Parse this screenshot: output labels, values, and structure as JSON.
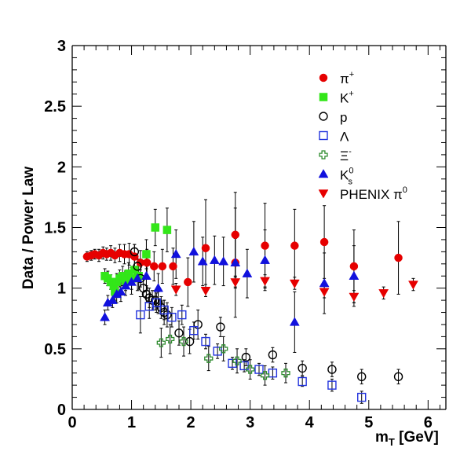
{
  "chart_data": {
    "type": "scatter",
    "xlabel": "m",
    "xlabel_sub": "T",
    "xlabel_unit": " [GeV]",
    "ylabel": "Data / Power Law",
    "xlim": [
      0,
      6.3
    ],
    "ylim": [
      0,
      3
    ],
    "x_ticks": [
      "0",
      "1",
      "2",
      "3",
      "4",
      "5",
      "6"
    ],
    "y_ticks": [
      "0",
      "0.5",
      "1",
      "1.5",
      "2",
      "2.5",
      "3"
    ],
    "x_tick_values": [
      0,
      1,
      2,
      3,
      4,
      5,
      6
    ],
    "y_tick_values": [
      0,
      0.5,
      1,
      1.5,
      2,
      2.5,
      3
    ],
    "grid": false,
    "legend_position": "top-right",
    "series": [
      {
        "name": "π⁺",
        "legend_base": "π",
        "legend_sup": "+",
        "legend_sub": "",
        "marker": "circle",
        "color": "#e60000",
        "filled": true,
        "points": [
          {
            "x": 0.25,
            "y": 1.26,
            "e": 0.04
          },
          {
            "x": 0.32,
            "y": 1.27,
            "e": 0.04
          },
          {
            "x": 0.38,
            "y": 1.28,
            "e": 0.04
          },
          {
            "x": 0.45,
            "y": 1.27,
            "e": 0.05
          },
          {
            "x": 0.52,
            "y": 1.29,
            "e": 0.05
          },
          {
            "x": 0.58,
            "y": 1.28,
            "e": 0.05
          },
          {
            "x": 0.65,
            "y": 1.29,
            "e": 0.06
          },
          {
            "x": 0.72,
            "y": 1.27,
            "e": 0.06
          },
          {
            "x": 0.8,
            "y": 1.29,
            "e": 0.07
          },
          {
            "x": 0.88,
            "y": 1.28,
            "e": 0.08
          },
          {
            "x": 0.96,
            "y": 1.28,
            "e": 0.09
          },
          {
            "x": 1.05,
            "y": 1.26,
            "e": 0.1
          },
          {
            "x": 1.15,
            "y": 1.21,
            "e": 0.1
          },
          {
            "x": 1.26,
            "y": 1.21,
            "e": 0.11
          },
          {
            "x": 1.38,
            "y": 1.18,
            "e": 0.12
          },
          {
            "x": 1.52,
            "y": 1.18,
            "e": 0.14
          },
          {
            "x": 1.7,
            "y": 1.18,
            "e": 0.15
          },
          {
            "x": 1.95,
            "y": 1.05,
            "e": 0.2
          },
          {
            "x": 2.25,
            "y": 1.33,
            "e": 0.4
          },
          {
            "x": 2.75,
            "y": 1.44,
            "e": 0.35
          },
          {
            "x": 2.75,
            "y": 1.21,
            "e": 0.45
          },
          {
            "x": 3.25,
            "y": 1.35,
            "e": 0.35
          },
          {
            "x": 3.75,
            "y": 1.35,
            "e": 0.3
          },
          {
            "x": 4.25,
            "y": 1.38,
            "e": 0.3
          },
          {
            "x": 4.75,
            "y": 1.18,
            "e": 0.3
          },
          {
            "x": 5.5,
            "y": 1.25,
            "e": 0.3
          }
        ]
      },
      {
        "name": "K⁺",
        "legend_base": "K",
        "legend_sup": "+",
        "legend_sub": "",
        "marker": "square",
        "color": "#33e619",
        "filled": true,
        "points": [
          {
            "x": 0.55,
            "y": 1.1,
            "e": 0.06
          },
          {
            "x": 0.6,
            "y": 1.08,
            "e": 0.06
          },
          {
            "x": 0.65,
            "y": 1.05,
            "e": 0.06
          },
          {
            "x": 0.7,
            "y": 1.02,
            "e": 0.06
          },
          {
            "x": 0.72,
            "y": 0.97,
            "e": 0.07
          },
          {
            "x": 0.75,
            "y": 1.05,
            "e": 0.07
          },
          {
            "x": 0.8,
            "y": 1.08,
            "e": 0.07
          },
          {
            "x": 0.85,
            "y": 1.1,
            "e": 0.08
          },
          {
            "x": 0.9,
            "y": 1.06,
            "e": 0.08
          },
          {
            "x": 0.95,
            "y": 1.12,
            "e": 0.09
          },
          {
            "x": 1.0,
            "y": 1.08,
            "e": 0.09
          },
          {
            "x": 1.05,
            "y": 1.15,
            "e": 0.1
          },
          {
            "x": 1.12,
            "y": 1.1,
            "e": 0.11
          },
          {
            "x": 1.25,
            "y": 1.28,
            "e": 0.12
          },
          {
            "x": 1.4,
            "y": 1.5,
            "e": 0.15
          },
          {
            "x": 1.6,
            "y": 1.48,
            "e": 0.18
          }
        ]
      },
      {
        "name": "p",
        "legend_base": "p",
        "legend_sup": "",
        "legend_sub": "",
        "marker": "circle",
        "color": "#000000",
        "filled": false,
        "points": [
          {
            "x": 1.05,
            "y": 1.3,
            "e": 0.06
          },
          {
            "x": 1.1,
            "y": 1.18,
            "e": 0.06
          },
          {
            "x": 1.15,
            "y": 1.08,
            "e": 0.07
          },
          {
            "x": 1.2,
            "y": 1.0,
            "e": 0.07
          },
          {
            "x": 1.25,
            "y": 0.95,
            "e": 0.07
          },
          {
            "x": 1.3,
            "y": 0.92,
            "e": 0.08
          },
          {
            "x": 1.35,
            "y": 0.9,
            "e": 0.08
          },
          {
            "x": 1.4,
            "y": 0.9,
            "e": 0.08
          },
          {
            "x": 1.45,
            "y": 0.88,
            "e": 0.09
          },
          {
            "x": 1.5,
            "y": 0.84,
            "e": 0.09
          },
          {
            "x": 1.55,
            "y": 0.8,
            "e": 0.1
          },
          {
            "x": 1.6,
            "y": 0.78,
            "e": 0.1
          },
          {
            "x": 1.8,
            "y": 0.63,
            "e": 0.1
          },
          {
            "x": 1.98,
            "y": 0.56,
            "e": 0.1
          },
          {
            "x": 2.12,
            "y": 0.7,
            "e": 0.12
          },
          {
            "x": 2.5,
            "y": 0.68,
            "e": 0.08
          },
          {
            "x": 2.93,
            "y": 0.43,
            "e": 0.07
          },
          {
            "x": 3.38,
            "y": 0.45,
            "e": 0.06
          },
          {
            "x": 3.88,
            "y": 0.34,
            "e": 0.06
          },
          {
            "x": 4.38,
            "y": 0.33,
            "e": 0.06
          },
          {
            "x": 4.88,
            "y": 0.27,
            "e": 0.06
          },
          {
            "x": 5.5,
            "y": 0.27,
            "e": 0.06
          }
        ]
      },
      {
        "name": "Λ",
        "legend_base": "Λ",
        "legend_sup": "",
        "legend_sub": "",
        "marker": "square",
        "color": "#2233dd",
        "filled": false,
        "points": [
          {
            "x": 1.15,
            "y": 0.78,
            "e": 0.15
          },
          {
            "x": 1.3,
            "y": 0.85,
            "e": 0.1
          },
          {
            "x": 1.42,
            "y": 0.88,
            "e": 0.08
          },
          {
            "x": 1.55,
            "y": 0.82,
            "e": 0.08
          },
          {
            "x": 1.68,
            "y": 0.76,
            "e": 0.08
          },
          {
            "x": 1.85,
            "y": 0.78,
            "e": 0.08
          },
          {
            "x": 2.05,
            "y": 0.65,
            "e": 0.07
          },
          {
            "x": 2.25,
            "y": 0.56,
            "e": 0.06
          },
          {
            "x": 2.45,
            "y": 0.48,
            "e": 0.06
          },
          {
            "x": 2.7,
            "y": 0.38,
            "e": 0.05
          },
          {
            "x": 2.9,
            "y": 0.36,
            "e": 0.05
          },
          {
            "x": 3.15,
            "y": 0.33,
            "e": 0.05
          },
          {
            "x": 3.38,
            "y": 0.3,
            "e": 0.05
          },
          {
            "x": 3.88,
            "y": 0.23,
            "e": 0.04
          },
          {
            "x": 4.38,
            "y": 0.2,
            "e": 0.05
          },
          {
            "x": 4.88,
            "y": 0.1,
            "e": 0.05
          }
        ]
      },
      {
        "name": "Ξ⁻",
        "legend_base": "Ξ",
        "legend_sup": "-",
        "legend_sub": "",
        "marker": "cross",
        "color": "#2e8b2e",
        "filled": false,
        "points": [
          {
            "x": 1.5,
            "y": 0.55,
            "e": 0.12
          },
          {
            "x": 1.65,
            "y": 0.58,
            "e": 0.12
          },
          {
            "x": 1.88,
            "y": 0.56,
            "e": 0.12
          },
          {
            "x": 2.3,
            "y": 0.42,
            "e": 0.1
          },
          {
            "x": 2.55,
            "y": 0.5,
            "e": 0.1
          },
          {
            "x": 2.78,
            "y": 0.4,
            "e": 0.1
          },
          {
            "x": 3.0,
            "y": 0.33,
            "e": 0.08
          },
          {
            "x": 3.25,
            "y": 0.28,
            "e": 0.08
          },
          {
            "x": 3.6,
            "y": 0.3,
            "e": 0.08
          }
        ]
      },
      {
        "name": "K⁰s",
        "legend_base": "K",
        "legend_sup": "0",
        "legend_sub": "s",
        "marker": "triangle-up",
        "color": "#1111dd",
        "filled": true,
        "points": [
          {
            "x": 0.55,
            "y": 0.76,
            "e": 0.06
          },
          {
            "x": 0.6,
            "y": 0.88,
            "e": 0.06
          },
          {
            "x": 0.68,
            "y": 0.9,
            "e": 0.06
          },
          {
            "x": 0.75,
            "y": 0.95,
            "e": 0.07
          },
          {
            "x": 0.82,
            "y": 0.97,
            "e": 0.08
          },
          {
            "x": 0.9,
            "y": 1.02,
            "e": 0.08
          },
          {
            "x": 1.0,
            "y": 1.05,
            "e": 0.1
          },
          {
            "x": 1.1,
            "y": 1.08,
            "e": 0.1
          },
          {
            "x": 1.25,
            "y": 1.1,
            "e": 0.12
          },
          {
            "x": 1.45,
            "y": 1.0,
            "e": 0.12
          },
          {
            "x": 1.75,
            "y": 1.28,
            "e": 0.2
          },
          {
            "x": 2.05,
            "y": 1.3,
            "e": 0.25
          },
          {
            "x": 2.2,
            "y": 1.22,
            "e": 0.2
          },
          {
            "x": 2.4,
            "y": 1.23,
            "e": 0.2
          },
          {
            "x": 2.55,
            "y": 1.22,
            "e": 0.2
          },
          {
            "x": 2.75,
            "y": 1.21,
            "e": 0.2
          },
          {
            "x": 2.95,
            "y": 1.12,
            "e": 0.2
          },
          {
            "x": 3.25,
            "y": 1.23,
            "e": 0.25
          },
          {
            "x": 3.75,
            "y": 0.72,
            "e": 0.25
          },
          {
            "x": 4.25,
            "y": 1.04,
            "e": 0.25
          },
          {
            "x": 4.75,
            "y": 1.1,
            "e": 0.25
          }
        ]
      },
      {
        "name": "PHENIX π⁰",
        "legend_base": "PHENIX π",
        "legend_sup": "0",
        "legend_sub": "",
        "marker": "triangle-down",
        "color": "#e60000",
        "filled": true,
        "points": [
          {
            "x": 1.75,
            "y": 0.99,
            "e": 0.05
          },
          {
            "x": 2.25,
            "y": 0.98,
            "e": 0.05
          },
          {
            "x": 2.75,
            "y": 1.05,
            "e": 0.05
          },
          {
            "x": 3.25,
            "y": 1.06,
            "e": 0.05
          },
          {
            "x": 3.75,
            "y": 1.04,
            "e": 0.05
          },
          {
            "x": 4.25,
            "y": 0.97,
            "e": 0.05
          },
          {
            "x": 4.75,
            "y": 0.93,
            "e": 0.05
          },
          {
            "x": 5.25,
            "y": 0.96,
            "e": 0.05
          },
          {
            "x": 5.75,
            "y": 1.03,
            "e": 0.05
          }
        ]
      }
    ]
  }
}
